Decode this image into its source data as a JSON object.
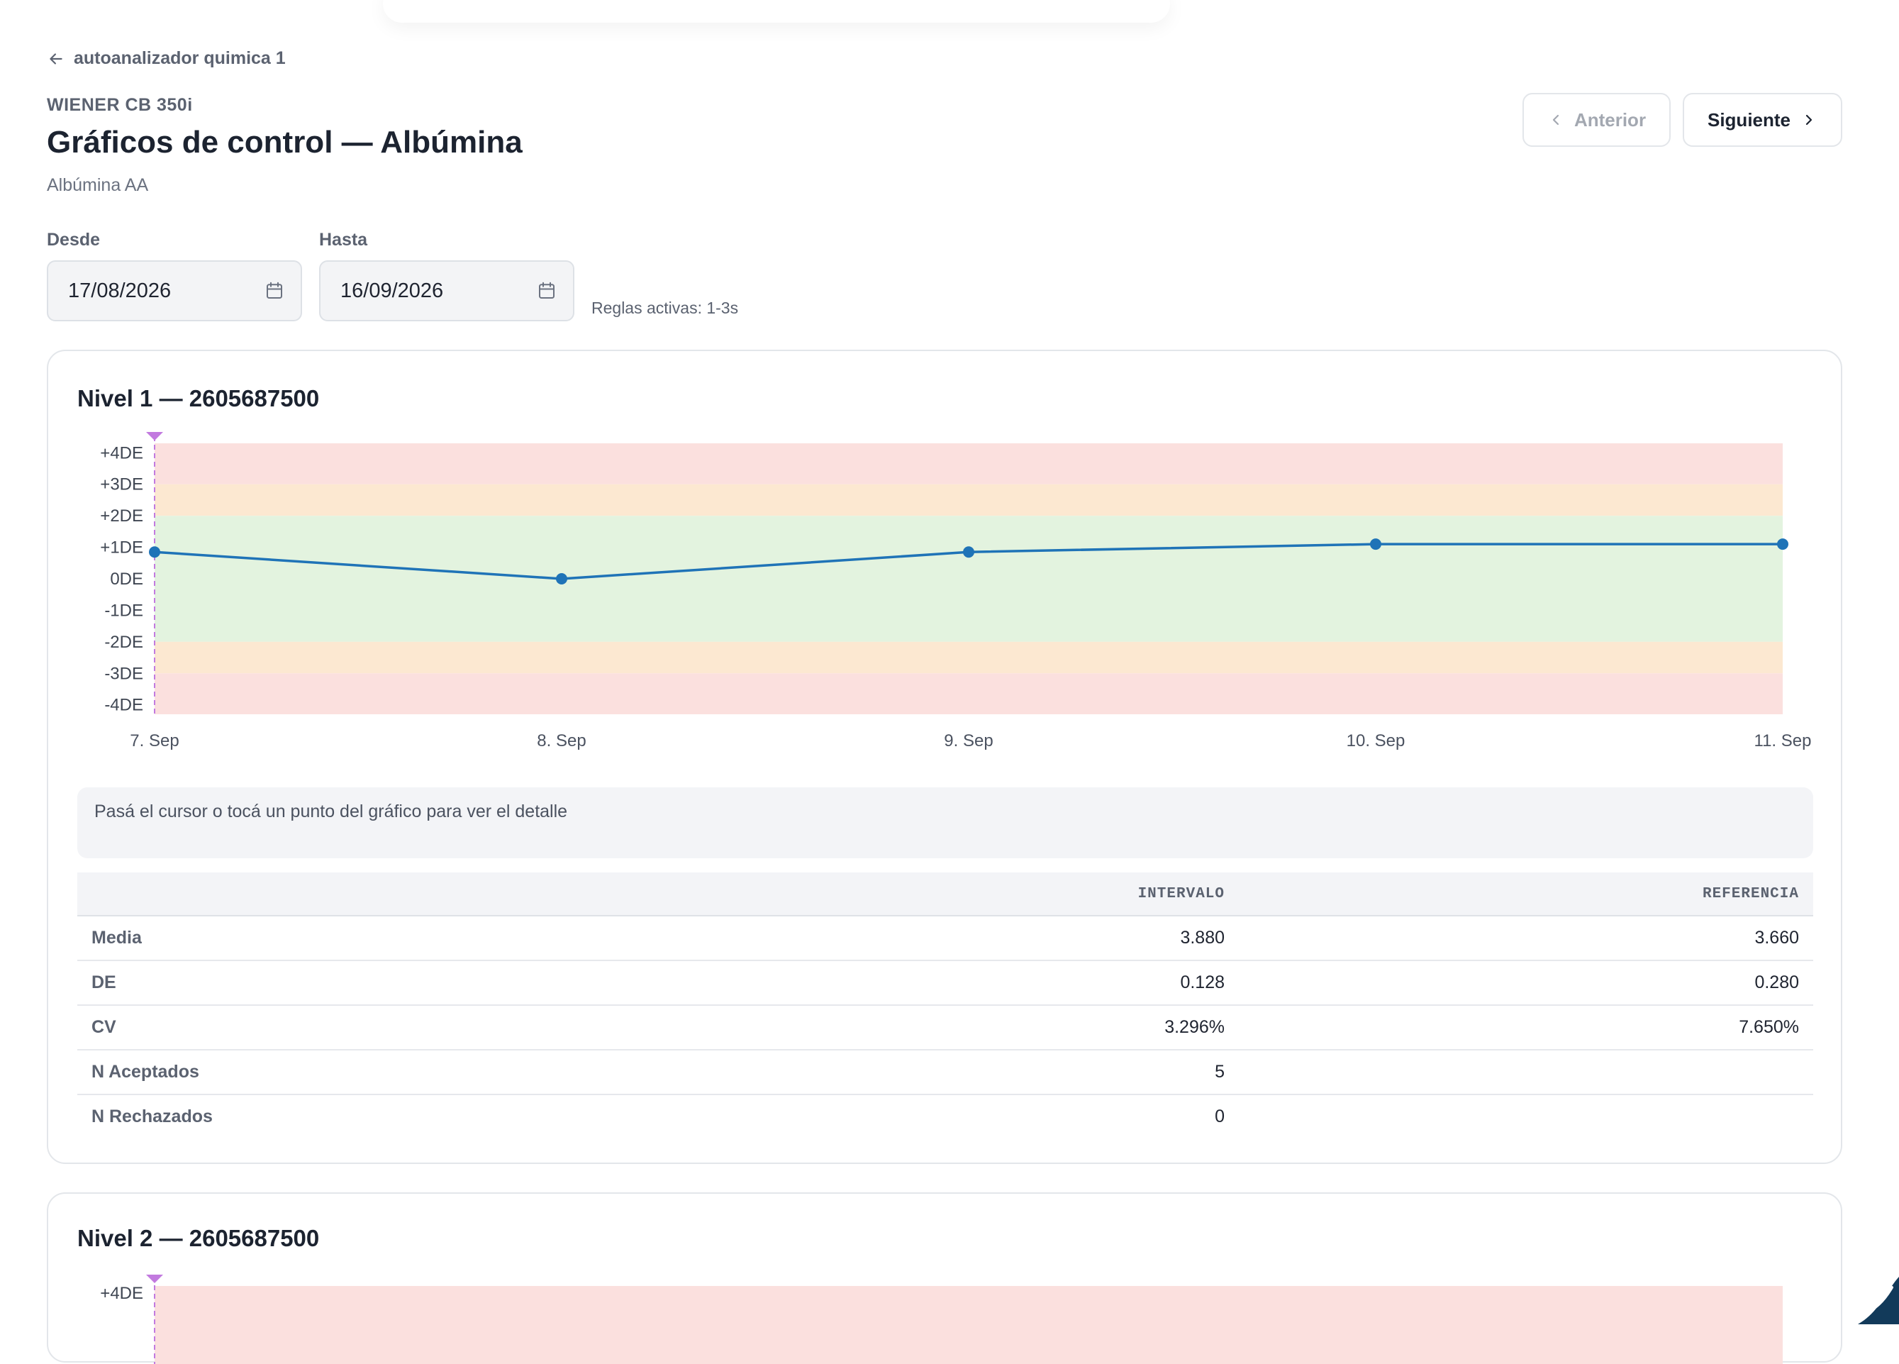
{
  "back_link": "autoanalizador quimica 1",
  "header": {
    "device": "WIENER CB 350i",
    "title": "Gráficos de control — Albúmina",
    "subtitle": "Albúmina AA"
  },
  "nav": {
    "prev_label": "Anterior",
    "next_label": "Siguiente"
  },
  "filters": {
    "from_label": "Desde",
    "from_value": "17/08/2026",
    "to_label": "Hasta",
    "to_value": "16/09/2026",
    "rules_text": "Reglas activas: 1-3s"
  },
  "icons": {
    "back": "arrow-left-icon",
    "prev": "chevron-left-icon",
    "next": "chevron-right-icon",
    "date": "calendar-icon",
    "marker": "triangle-marker-icon"
  },
  "colors": {
    "zone_green": "#e3f3df",
    "zone_orange": "#fce8d1",
    "zone_red": "#fbe0de",
    "series_line": "#1f73b7",
    "marker": "#c27adf"
  },
  "levels": [
    {
      "title": "Nivel 1 — 2605687500",
      "hint": "Pasá el cursor o tocá un punto del gráfico para ver el detalle",
      "stats": {
        "headers": [
          "",
          "INTERVALO",
          "REFERENCIA"
        ],
        "rows": [
          {
            "label": "Media",
            "intervalo": "3.880",
            "referencia": "3.660"
          },
          {
            "label": "DE",
            "intervalo": "0.128",
            "referencia": "0.280"
          },
          {
            "label": "CV",
            "intervalo": "3.296%",
            "referencia": "7.650%"
          },
          {
            "label": "N Aceptados",
            "intervalo": "5",
            "referencia": ""
          },
          {
            "label": "N Rechazados",
            "intervalo": "0",
            "referencia": ""
          }
        ]
      }
    },
    {
      "title": "Nivel 2 — 2605687500",
      "first_tick": "+4DE"
    }
  ],
  "chart_data": {
    "type": "line",
    "title": "",
    "xlabel": "",
    "ylabel": "",
    "y_tick_labels": [
      "+4DE",
      "+3DE",
      "+2DE",
      "+1DE",
      "0DE",
      "-1DE",
      "-2DE",
      "-3DE",
      "-4DE"
    ],
    "ylim": [
      -4.3,
      4.3
    ],
    "bands": [
      {
        "from": 3,
        "to": 4.3,
        "color": "#fbe0de"
      },
      {
        "from": 2,
        "to": 3,
        "color": "#fce8d1"
      },
      {
        "from": -2,
        "to": 2,
        "color": "#e3f3df"
      },
      {
        "from": -3,
        "to": -2,
        "color": "#fce8d1"
      },
      {
        "from": -4.3,
        "to": -3,
        "color": "#fbe0de"
      }
    ],
    "categories": [
      "7. Sep",
      "8. Sep",
      "9. Sep",
      "10. Sep",
      "11. Sep"
    ],
    "series": [
      {
        "values": [
          0.85,
          0.0,
          0.85,
          1.1,
          1.1
        ]
      }
    ],
    "grid": false,
    "legend": "none"
  }
}
